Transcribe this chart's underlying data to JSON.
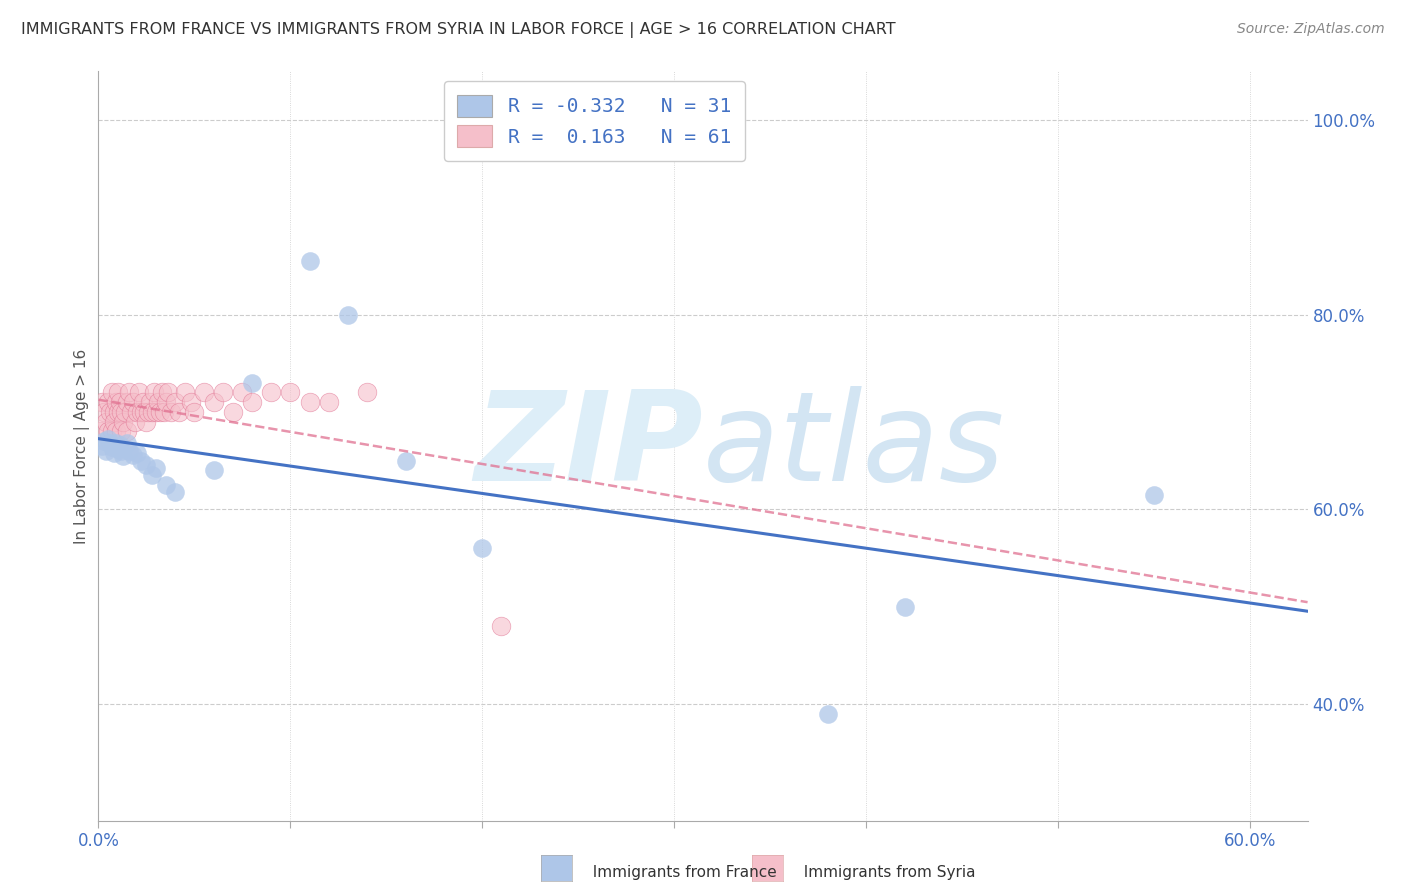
{
  "title": "IMMIGRANTS FROM FRANCE VS IMMIGRANTS FROM SYRIA IN LABOR FORCE | AGE > 16 CORRELATION CHART",
  "source": "Source: ZipAtlas.com",
  "ylabel": "In Labor Force | Age > 16",
  "xlim": [
    0.0,
    0.63
  ],
  "ylim": [
    0.28,
    1.05
  ],
  "france_color": "#aec6e8",
  "france_edge_color": "#aec6e8",
  "france_line_color": "#4472c4",
  "syria_color": "#f5bfca",
  "syria_edge_color": "#e07090",
  "syria_line_color": "#e07090",
  "france_R": -0.332,
  "france_N": 31,
  "syria_R": 0.163,
  "syria_N": 61,
  "legend_label_france": "Immigrants from France",
  "legend_label_syria": "Immigrants from Syria",
  "background_color": "#ffffff",
  "grid_color": "#cccccc",
  "title_color": "#333333",
  "axis_label_color": "#555555",
  "right_tick_color": "#4472c4",
  "watermark_color": "#ddeef8",
  "france_x": [
    0.002,
    0.003,
    0.004,
    0.005,
    0.006,
    0.007,
    0.008,
    0.009,
    0.01,
    0.011,
    0.012,
    0.013,
    0.015,
    0.016,
    0.018,
    0.02,
    0.022,
    0.025,
    0.028,
    0.03,
    0.035,
    0.04,
    0.06,
    0.08,
    0.11,
    0.13,
    0.16,
    0.2,
    0.38,
    0.42,
    0.55
  ],
  "france_y": [
    0.665,
    0.67,
    0.66,
    0.672,
    0.668,
    0.664,
    0.658,
    0.668,
    0.662,
    0.666,
    0.66,
    0.655,
    0.668,
    0.66,
    0.656,
    0.658,
    0.65,
    0.645,
    0.635,
    0.642,
    0.625,
    0.618,
    0.64,
    0.73,
    0.855,
    0.8,
    0.65,
    0.56,
    0.39,
    0.5,
    0.615
  ],
  "syria_x": [
    0.001,
    0.002,
    0.003,
    0.004,
    0.005,
    0.005,
    0.006,
    0.007,
    0.007,
    0.008,
    0.008,
    0.009,
    0.009,
    0.01,
    0.01,
    0.011,
    0.012,
    0.012,
    0.013,
    0.014,
    0.015,
    0.015,
    0.016,
    0.017,
    0.018,
    0.019,
    0.02,
    0.021,
    0.022,
    0.023,
    0.024,
    0.025,
    0.026,
    0.027,
    0.028,
    0.029,
    0.03,
    0.031,
    0.032,
    0.033,
    0.034,
    0.035,
    0.036,
    0.038,
    0.04,
    0.042,
    0.045,
    0.048,
    0.05,
    0.055,
    0.06,
    0.065,
    0.07,
    0.075,
    0.08,
    0.09,
    0.1,
    0.11,
    0.12,
    0.14,
    0.21
  ],
  "syria_y": [
    0.68,
    0.71,
    0.7,
    0.69,
    0.68,
    0.71,
    0.7,
    0.72,
    0.68,
    0.7,
    0.69,
    0.71,
    0.68,
    0.72,
    0.7,
    0.71,
    0.7,
    0.68,
    0.69,
    0.7,
    0.71,
    0.68,
    0.72,
    0.7,
    0.71,
    0.69,
    0.7,
    0.72,
    0.7,
    0.71,
    0.7,
    0.69,
    0.7,
    0.71,
    0.7,
    0.72,
    0.7,
    0.71,
    0.7,
    0.72,
    0.7,
    0.71,
    0.72,
    0.7,
    0.71,
    0.7,
    0.72,
    0.71,
    0.7,
    0.72,
    0.71,
    0.72,
    0.7,
    0.72,
    0.71,
    0.72,
    0.72,
    0.71,
    0.71,
    0.72,
    0.48
  ],
  "yticks": [
    0.4,
    0.6,
    0.8,
    1.0
  ],
  "ytick_labels": [
    "40.0%",
    "60.0%",
    "80.0%",
    "100.0%"
  ],
  "xtick_positions": [
    0.0,
    0.1,
    0.2,
    0.3,
    0.4,
    0.5,
    0.6
  ],
  "xtick_labels": [
    "0.0%",
    "",
    "",
    "",
    "",
    "",
    "60.0%"
  ]
}
